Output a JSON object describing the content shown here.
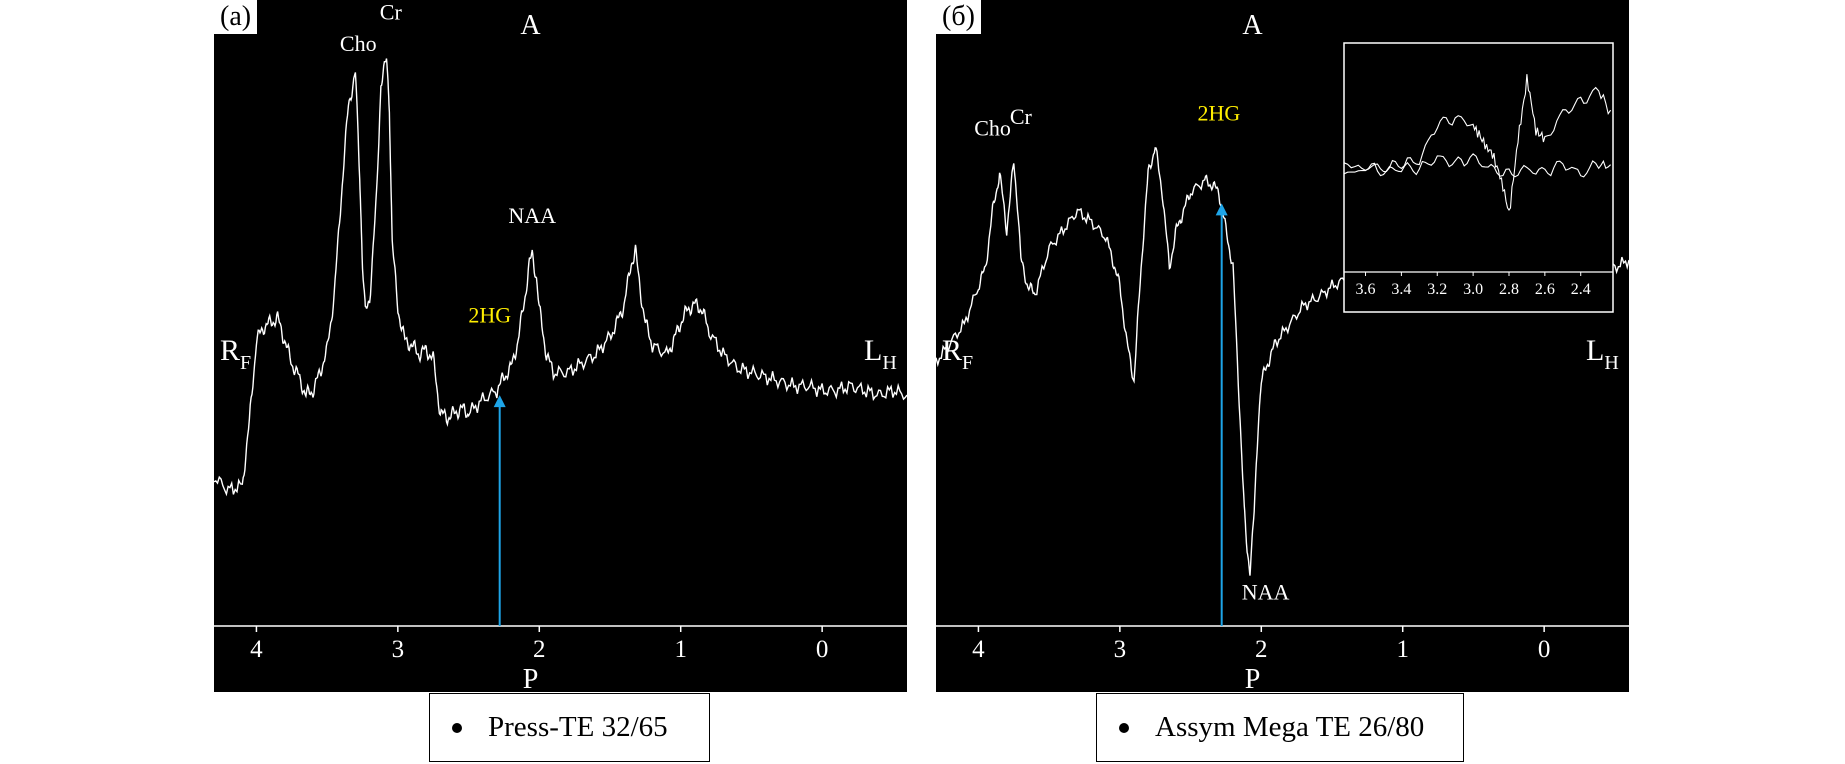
{
  "chart_data": [
    {
      "type": "line",
      "panel_label": "(a)",
      "top_label": "A",
      "bottom_label": "P",
      "left_label": "R",
      "left_sub": "F",
      "right_label": "L",
      "right_sub": "H",
      "xlim": [
        4.3,
        -0.6
      ],
      "ylim": [
        -0.25,
        1.0
      ],
      "xticks": [
        4,
        3,
        2,
        1,
        0
      ],
      "legend": "Press-TE 32/65",
      "colors": {
        "trace": "#ffffff",
        "metabolite": "#ffffff",
        "highlight": "#ffee00",
        "arrow": "#1ea5e8"
      },
      "series": [
        {
          "x": [
            4.3,
            4.2,
            4.1,
            4.05,
            4.0,
            3.95,
            3.9,
            3.85,
            3.8,
            3.75,
            3.7,
            3.65,
            3.6,
            3.55,
            3.5,
            3.45,
            3.4,
            3.35,
            3.3,
            3.27,
            3.25,
            3.23,
            3.2,
            3.15,
            3.12,
            3.08,
            3.06,
            3.04,
            3.0,
            2.95,
            2.9,
            2.85,
            2.8,
            2.75,
            2.7,
            2.65,
            2.6,
            2.55,
            2.5,
            2.4,
            2.3,
            2.25,
            2.2,
            2.15,
            2.1,
            2.07,
            2.05,
            2.02,
            2.0,
            1.95,
            1.9,
            1.8,
            1.7,
            1.6,
            1.5,
            1.45,
            1.4,
            1.35,
            1.32,
            1.29,
            1.25,
            1.2,
            1.1,
            1.05,
            1.0,
            0.95,
            0.9,
            0.85,
            0.8,
            0.7,
            0.6,
            0.5,
            0.4,
            0.3,
            0.2,
            0.1,
            0.0,
            -0.1,
            -0.2,
            -0.3,
            -0.4,
            -0.5,
            -0.6
          ],
          "y": [
            0.08,
            0.05,
            0.06,
            0.2,
            0.38,
            0.41,
            0.42,
            0.43,
            0.38,
            0.33,
            0.3,
            0.26,
            0.27,
            0.31,
            0.36,
            0.48,
            0.7,
            0.9,
            0.97,
            0.75,
            0.55,
            0.44,
            0.47,
            0.7,
            0.95,
            1.0,
            0.9,
            0.6,
            0.45,
            0.38,
            0.37,
            0.35,
            0.36,
            0.34,
            0.22,
            0.21,
            0.22,
            0.23,
            0.22,
            0.25,
            0.27,
            0.3,
            0.32,
            0.38,
            0.48,
            0.55,
            0.57,
            0.52,
            0.45,
            0.35,
            0.31,
            0.31,
            0.33,
            0.35,
            0.39,
            0.42,
            0.46,
            0.55,
            0.58,
            0.5,
            0.42,
            0.37,
            0.35,
            0.38,
            0.42,
            0.45,
            0.46,
            0.45,
            0.4,
            0.35,
            0.32,
            0.31,
            0.3,
            0.29,
            0.28,
            0.28,
            0.27,
            0.27,
            0.28,
            0.27,
            0.26,
            0.27,
            0.26
          ]
        }
      ],
      "annotations": [
        {
          "text": "Cho",
          "x": 3.28,
          "y": 1.02,
          "style": "metabolite"
        },
        {
          "text": "Cr",
          "x": 3.05,
          "y": 1.09,
          "style": "metabolite"
        },
        {
          "text": "NAA",
          "x": 2.05,
          "y": 0.64,
          "style": "metabolite"
        },
        {
          "text": "2HG",
          "x": 2.35,
          "y": 0.42,
          "style": "highlight"
        }
      ],
      "arrow": {
        "x": 2.28,
        "y_from": -0.25,
        "y_to": 0.26
      }
    },
    {
      "type": "line",
      "panel_label": "(б)",
      "top_label": "A",
      "bottom_label": "P",
      "left_label": "R",
      "left_sub": "F",
      "right_label": "L",
      "right_sub": "H",
      "xlim": [
        4.3,
        -0.6
      ],
      "ylim": [
        -0.85,
        0.65
      ],
      "xticks": [
        4,
        3,
        2,
        1,
        0
      ],
      "legend": "Assym Mega TE 26/80",
      "colors": {
        "trace": "#ffffff",
        "metabolite": "#ffffff",
        "highlight": "#ffee00",
        "arrow": "#1ea5e8"
      },
      "series": [
        {
          "x": [
            4.3,
            4.2,
            4.1,
            4.0,
            3.95,
            3.9,
            3.85,
            3.8,
            3.75,
            3.72,
            3.7,
            3.65,
            3.6,
            3.5,
            3.4,
            3.3,
            3.2,
            3.1,
            3.05,
            3.0,
            2.95,
            2.9,
            2.85,
            2.8,
            2.75,
            2.7,
            2.65,
            2.6,
            2.55,
            2.5,
            2.4,
            2.35,
            2.3,
            2.25,
            2.2,
            2.15,
            2.12,
            2.1,
            2.08,
            2.05,
            2.02,
            2.0,
            1.95,
            1.9,
            1.8,
            1.7,
            1.6,
            1.5,
            1.4,
            1.3,
            1.2,
            1.1,
            1.0,
            0.9,
            0.8,
            0.7,
            0.6,
            0.5,
            0.4,
            0.3,
            0.2,
            0.1,
            0.0,
            -0.1,
            -0.2,
            -0.3,
            -0.4,
            -0.5,
            -0.6
          ],
          "y": [
            -0.15,
            -0.1,
            -0.05,
            0.05,
            0.1,
            0.25,
            0.35,
            0.2,
            0.38,
            0.25,
            0.12,
            0.05,
            0.03,
            0.15,
            0.2,
            0.25,
            0.22,
            0.18,
            0.12,
            0.05,
            -0.1,
            -0.2,
            0.1,
            0.35,
            0.42,
            0.3,
            0.1,
            0.2,
            0.25,
            0.3,
            0.33,
            0.32,
            0.3,
            0.2,
            0.1,
            -0.3,
            -0.55,
            -0.65,
            -0.7,
            -0.55,
            -0.3,
            -0.2,
            -0.15,
            -0.1,
            -0.05,
            0.0,
            0.02,
            0.05,
            0.07,
            0.08,
            0.1,
            0.09,
            0.1,
            0.11,
            0.1,
            0.1,
            0.11,
            0.1,
            0.12,
            0.11,
            0.1,
            0.11,
            0.12,
            0.1,
            0.11,
            0.12,
            0.11,
            0.1,
            0.12
          ]
        }
      ],
      "annotations": [
        {
          "text": "Cho",
          "x": 3.9,
          "y": 0.45,
          "style": "metabolite"
        },
        {
          "text": "Cr",
          "x": 3.7,
          "y": 0.48,
          "style": "metabolite"
        },
        {
          "text": "2HG",
          "x": 2.3,
          "y": 0.49,
          "style": "highlight"
        },
        {
          "text": "NAA",
          "x": 1.97,
          "y": -0.78,
          "style": "metabolite"
        }
      ],
      "arrow": {
        "x": 2.28,
        "y_from": -0.85,
        "y_to": 0.27
      },
      "inset": {
        "xlim": [
          3.72,
          2.22
        ],
        "xticks": [
          3.6,
          3.4,
          3.2,
          3.0,
          2.8,
          2.6,
          2.4
        ],
        "xtick_labels": [
          "3.6",
          "3.4",
          "3.2",
          "3.0",
          "2.8",
          "2.6",
          "2.4"
        ],
        "ylim": [
          -0.6,
          1.0
        ],
        "series": [
          {
            "x": [
              3.72,
              3.6,
              3.5,
              3.4,
              3.3,
              3.2,
              3.1,
              3.0,
              2.95,
              2.9,
              2.85,
              2.8,
              2.75,
              2.7,
              2.65,
              2.6,
              2.5,
              2.4,
              2.3,
              2.22
            ],
            "y": [
              0.1,
              0.08,
              0.05,
              0.1,
              0.12,
              0.45,
              0.5,
              0.45,
              0.3,
              0.2,
              0.0,
              -0.35,
              0.3,
              0.85,
              0.4,
              0.3,
              0.55,
              0.65,
              0.75,
              0.5
            ]
          },
          {
            "x": [
              3.72,
              3.6,
              3.5,
              3.4,
              3.3,
              3.2,
              3.1,
              3.0,
              2.9,
              2.8,
              2.7,
              2.6,
              2.5,
              2.4,
              2.3,
              2.22
            ],
            "y": [
              0.05,
              0.08,
              0.02,
              0.06,
              0.05,
              0.15,
              0.1,
              0.15,
              0.05,
              0.0,
              0.05,
              0.02,
              0.1,
              0.0,
              0.1,
              0.05
            ]
          }
        ]
      }
    }
  ]
}
